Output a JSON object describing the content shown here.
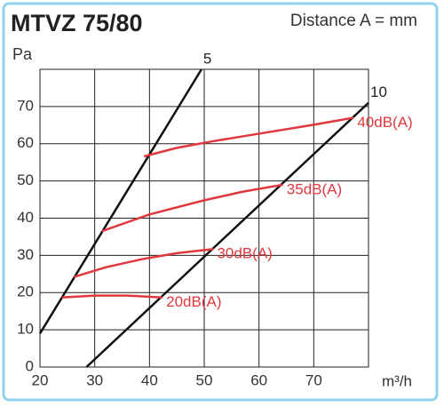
{
  "chart_data": {
    "type": "line",
    "title": "MTVZ 75/80",
    "subtitle": "Distance A = mm",
    "y_label": "Pa",
    "x_label": "m³/h",
    "xlim": [
      20,
      80
    ],
    "xticks": [
      20,
      30,
      40,
      50,
      60,
      70
    ],
    "ylim": [
      0,
      80
    ],
    "yticks": [
      0,
      10,
      20,
      30,
      40,
      50,
      60,
      70
    ],
    "grid": true,
    "series": [
      {
        "name": "5",
        "color": "#111111",
        "x": [
          20,
          49.5
        ],
        "values": [
          9,
          80
        ]
      },
      {
        "name": "10",
        "color": "#111111",
        "x": [
          28.5,
          80
        ],
        "values": [
          0,
          71
        ]
      },
      {
        "name": "20dB(A)",
        "color": "#e0383e",
        "x": [
          24,
          30,
          36,
          42.4
        ],
        "values": [
          18.7,
          19.2,
          19.2,
          18.7
        ]
      },
      {
        "name": "30dB(A)",
        "color": "#e0383e",
        "x": [
          26.2,
          32,
          38.7,
          45,
          51.7
        ],
        "values": [
          24.2,
          26.8,
          29,
          30.6,
          31.7
        ]
      },
      {
        "name": "35dB(A)",
        "color": "#e0383e",
        "x": [
          31.3,
          40,
          50,
          57,
          64.4
        ],
        "values": [
          36.5,
          41,
          44.8,
          47.1,
          49
        ]
      },
      {
        "name": "40dB(A)",
        "color": "#e0383e",
        "x": [
          39,
          45,
          51.7,
          60,
          70,
          77.3
        ],
        "values": [
          56.6,
          58.9,
          60.7,
          62.7,
          65.1,
          67
        ]
      }
    ]
  }
}
